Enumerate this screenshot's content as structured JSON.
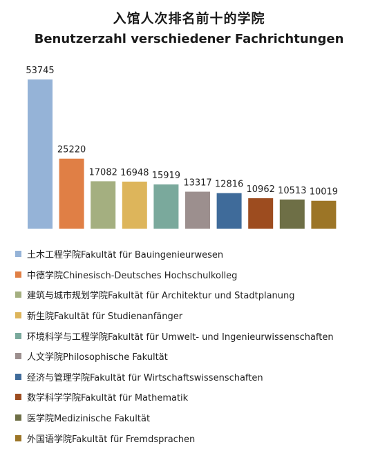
{
  "chart_data": {
    "type": "bar",
    "title": "入馆人次排名前十的学院",
    "subtitle": "Benutzerzahl verschiedener Fachrichtungen",
    "ylim": [
      0,
      56000
    ],
    "grid": false,
    "legend_position": "bottom",
    "categories": [
      "土木工程学院Fakultät für Bauingenieurwesen",
      "中德学院Chinesisch-Deutsches Hochschulkolleg",
      "建筑与城市规划学院Fakultät für Architektur und Stadtplanung",
      "新生院Fakultät für Studienanfänger",
      "环境科学与工程学院Fakultät für Umwelt- und Ingenieurwissenschaften",
      "人文学院Philosophische Fakultät",
      "经济与管理学院Fakultät für Wirtschaftswissenschaften",
      "数学科学学院Fakultät für Mathematik",
      "医学院Medizinische Fakultät",
      "外国语学院Fakultät für Fremdsprachen"
    ],
    "values": [
      53745,
      25220,
      17082,
      16948,
      15919,
      13317,
      12816,
      10962,
      10513,
      10019
    ],
    "colors": [
      "#95B3D7",
      "#E07F45",
      "#A4AF80",
      "#DDB55B",
      "#7AA99C",
      "#9C8F8E",
      "#3F6B9A",
      "#9D4C1F",
      "#6E6F46",
      "#9C7526"
    ]
  }
}
